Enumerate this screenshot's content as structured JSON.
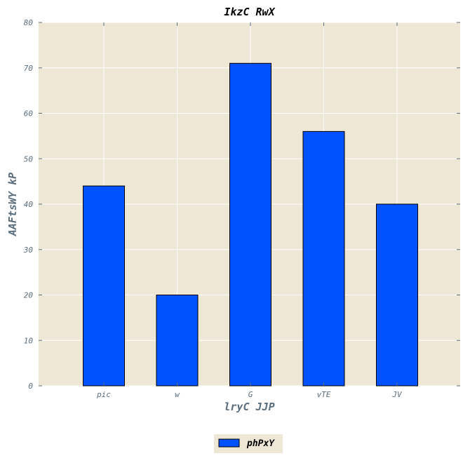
{
  "chart_data": {
    "type": "bar",
    "title": "IkzC RwX",
    "xlabel": "lryC JJP",
    "ylabel": "AAFtsWY kP",
    "categories": [
      "pic",
      "w",
      "G",
      "vTE",
      "JV"
    ],
    "series": [
      {
        "name": "phPxY",
        "values": [
          44,
          20,
          71,
          56,
          40
        ]
      }
    ],
    "ylim": [
      0,
      80
    ],
    "yticks": [
      0,
      10,
      20,
      30,
      40,
      50,
      60,
      70,
      80
    ],
    "grid": true,
    "legend_position": "bottom-center",
    "colors": {
      "bar_fill": "#0051ff",
      "bar_edge": "#000000",
      "plot_background": "#efe7d5",
      "grid": "#ffffff",
      "axis_text": "#5a6e7e",
      "legend_background": "#efe7d5"
    }
  }
}
